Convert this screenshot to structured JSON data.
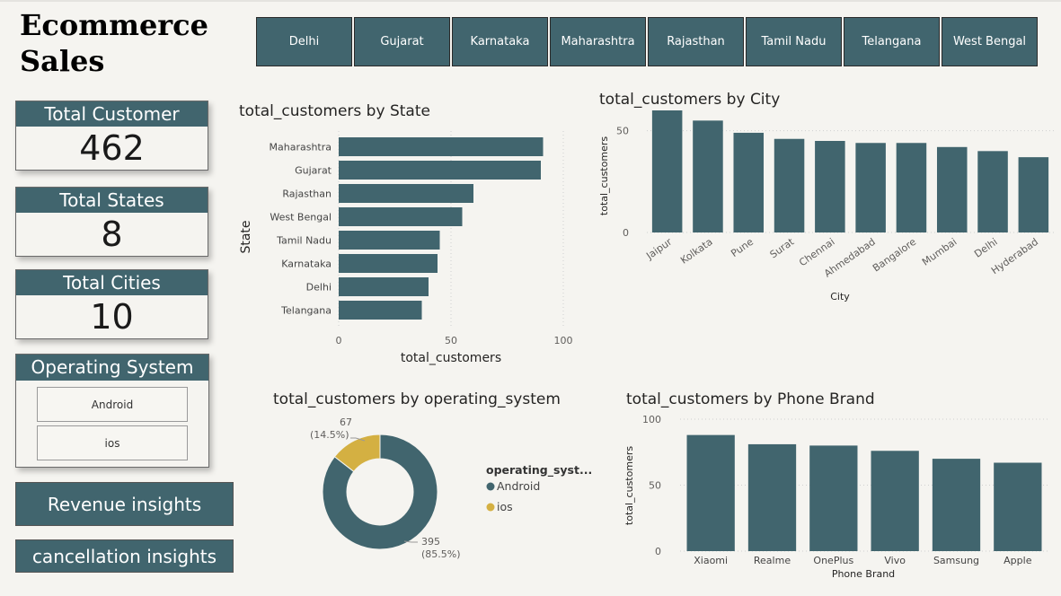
{
  "title_line1": "Ecommerce",
  "title_line2": "Sales",
  "state_tabs": [
    "Delhi",
    "Gujarat",
    "Karnataka",
    "Maharashtra",
    "Rajasthan",
    "Tamil Nadu",
    "Telangana",
    "West Bengal"
  ],
  "kpis": {
    "customers": {
      "label": "Total Customer",
      "value": "462"
    },
    "states": {
      "label": "Total States",
      "value": "8"
    },
    "cities": {
      "label": "Total Cities",
      "value": "10"
    }
  },
  "os_filter": {
    "label": "Operating System",
    "options": [
      "Android",
      "ios"
    ]
  },
  "nav": {
    "revenue": "Revenue insights",
    "cancellation": "cancellation insights"
  },
  "colors": {
    "primary": "#41656e",
    "secondary": "#d4b042",
    "background": "#f5f4f0"
  },
  "chart_data": [
    {
      "type": "bar",
      "orientation": "horizontal",
      "title": "total_customers by State",
      "xlabel": "total_customers",
      "ylabel": "State",
      "categories": [
        "Maharashtra",
        "Gujarat",
        "Rajasthan",
        "West Bengal",
        "Tamil Nadu",
        "Karnataka",
        "Delhi",
        "Telangana"
      ],
      "values": [
        91,
        90,
        60,
        55,
        45,
        44,
        40,
        37
      ],
      "xlim": [
        0,
        100
      ],
      "ticks": [
        0,
        50,
        100
      ],
      "grid": true
    },
    {
      "type": "bar",
      "title": "total_customers by City",
      "xlabel": "City",
      "ylabel": "total_customers",
      "categories": [
        "Jaipur",
        "Kolkata",
        "Pune",
        "Surat",
        "Chennai",
        "Ahmedabad",
        "Bangalore",
        "Mumbai",
        "Delhi",
        "Hyderabad"
      ],
      "values": [
        60,
        55,
        49,
        46,
        45,
        44,
        44,
        42,
        40,
        37
      ],
      "ylim": [
        0,
        60
      ],
      "ticks": [
        0,
        50
      ],
      "grid": true
    },
    {
      "type": "pie",
      "donut": true,
      "title": "total_customers by operating_system",
      "legend_title": "operating_syst...",
      "legend_position": "right",
      "slices": [
        {
          "label": "Android",
          "value": 395,
          "percent": "(85.5%)",
          "color": "#41656e"
        },
        {
          "label": "ios",
          "value": 67,
          "percent": "(14.5%)",
          "color": "#d4b042"
        }
      ]
    },
    {
      "type": "bar",
      "title": "total_customers by Phone Brand",
      "xlabel": "Phone Brand",
      "ylabel": "total_customers",
      "categories": [
        "Xiaomi",
        "Realme",
        "OnePlus",
        "Vivo",
        "Samsung",
        "Apple"
      ],
      "values": [
        88,
        81,
        80,
        76,
        70,
        67
      ],
      "ylim": [
        0,
        100
      ],
      "ticks": [
        0,
        50,
        100
      ],
      "grid": true
    }
  ]
}
